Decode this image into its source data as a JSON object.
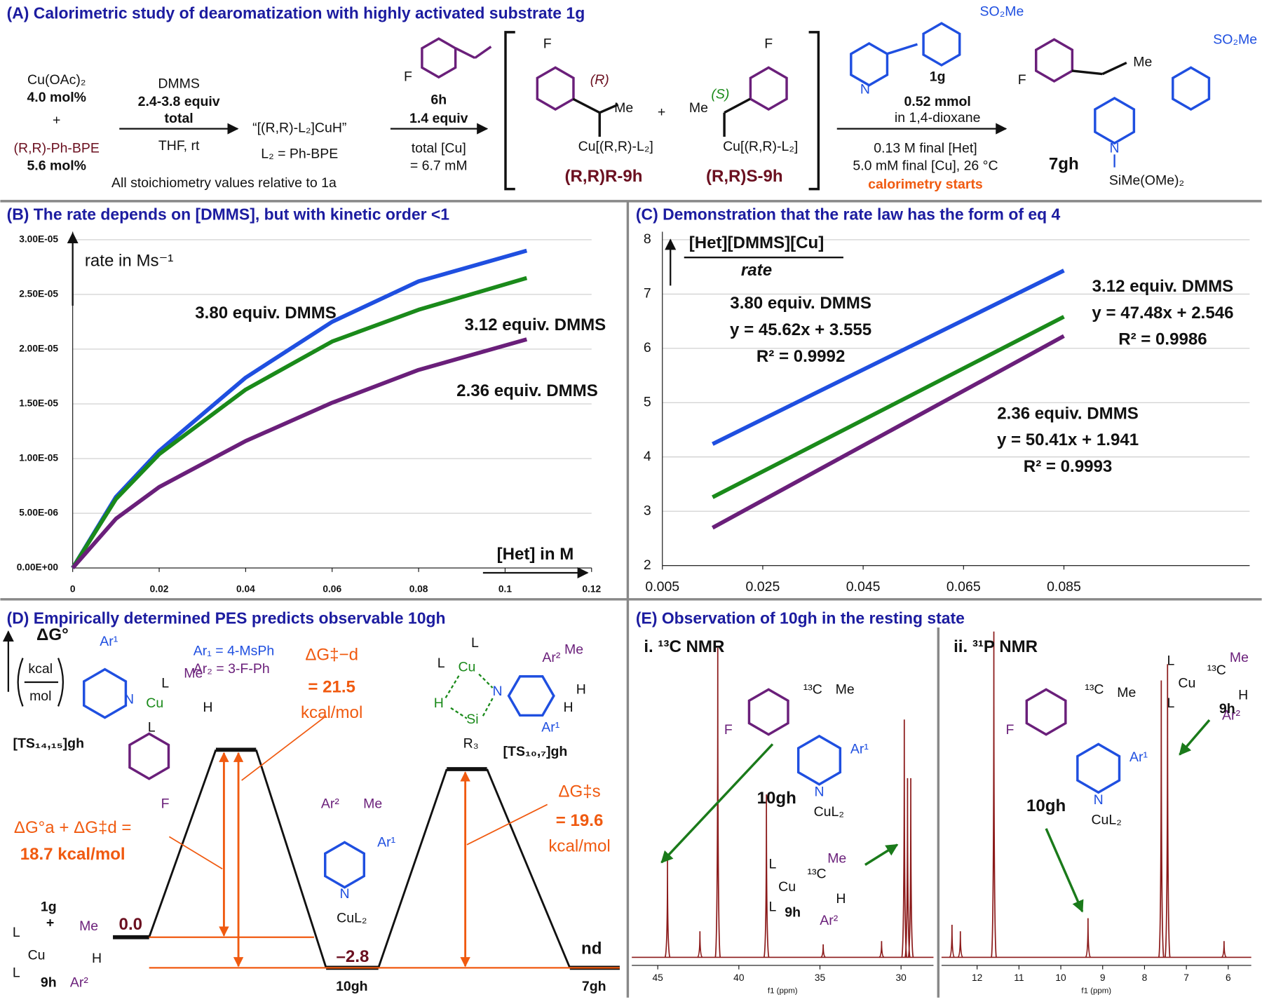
{
  "panel_a": {
    "title": "(A) Calorimetric study of dearomatization with highly activated substrate 1g",
    "reagent1": "Cu(OAc)₂",
    "reagent1_amount": "4.0 mol%",
    "plus": "+",
    "ligand": "(R,R)-Ph-BPE",
    "ligand_amount": "5.6 mol%",
    "dmms": "DMMS",
    "dmms_amount": "2.4-3.8 equiv",
    "dmms_total": "total",
    "conditions": "THF, rt",
    "cuh": "“[(R,R)-L₂]CuH”",
    "l2": "L₂ = Ph-BPE",
    "note": "All stoichiometry values relative to 1a",
    "styrene_f": "F",
    "styrene_label": "6h",
    "styrene_amount": "1.4 equiv",
    "cu_total": "total [Cu]",
    "cu_conc": "= 6.7 mM",
    "int_r_f": "F",
    "int_r_config": "(R)",
    "int_r_me": "Me",
    "int_r_cu": "Cu[(R,R)-L₂]",
    "plus2": "+",
    "int_s_me": "Me",
    "int_s_config": "(S)",
    "int_s_f": "F",
    "int_s_cu": "Cu[(R,R)-L₂]",
    "label_r": "(R,R)R-9h",
    "label_s": "(R,R)S-9h",
    "het_so2me": "SO₂Me",
    "het_n": "N",
    "het_label": "1g",
    "het_amount": "0.52 mmol",
    "het_solvent": "in 1,4-dioxane",
    "cond2": "0.13 M final [Het]",
    "cond3": "5.0 mM final [Cu], 26 °C",
    "cond4": "calorimetry starts",
    "prod_f": "F",
    "prod_me": "Me",
    "prod_so2me": "SO₂Me",
    "prod_n": "N",
    "prod_si": "SiMe(OMe)₂",
    "prod_label": "7gh"
  },
  "chart_data": [
    {
      "type": "line",
      "title": "(B) The rate depends on [DMMS], but with kinetic order <1",
      "ylabel": "rate in Ms⁻¹",
      "xlabel": "[Het] in M",
      "x": [
        0,
        0.01,
        0.02,
        0.04,
        0.06,
        0.08,
        0.105
      ],
      "series": [
        {
          "name": "3.80 equiv. DMMS",
          "color": "#1f4fe0",
          "values": [
            0,
            6.5e-06,
            1.07e-05,
            1.74e-05,
            2.25e-05,
            2.62e-05,
            2.9e-05
          ]
        },
        {
          "name": "3.12 equiv. DMMS",
          "color": "#1a8a1a",
          "values": [
            0,
            6.3e-06,
            1.04e-05,
            1.63e-05,
            2.07e-05,
            2.36e-05,
            2.65e-05
          ]
        },
        {
          "name": "2.36 equiv. DMMS",
          "color": "#6a1f7a",
          "values": [
            0,
            4.5e-06,
            7.4e-06,
            1.16e-05,
            1.51e-05,
            1.81e-05,
            2.09e-05
          ]
        }
      ],
      "xlim": [
        0,
        0.12
      ],
      "xticks": [
        0,
        0.02,
        0.04,
        0.06,
        0.08,
        0.1,
        0.12
      ],
      "ylim": [
        0,
        3e-05
      ],
      "yticks": [
        {
          "value": 0,
          "label": "0.00E+00"
        },
        {
          "value": 5e-06,
          "label": "5.00E-06"
        },
        {
          "value": 1e-05,
          "label": "1.00E-05"
        },
        {
          "value": 1.5e-05,
          "label": "1.50E-05"
        },
        {
          "value": 2e-05,
          "label": "2.00E-05"
        },
        {
          "value": 2.5e-05,
          "label": "2.50E-05"
        },
        {
          "value": 3e-05,
          "label": "3.00E-05"
        }
      ],
      "grid": true
    },
    {
      "type": "line",
      "title": "(C) Demonstration that the rate law has the form of eq 4",
      "ylabel_top": "[Het][DMMS][Cu]",
      "ylabel_bottom": "rate",
      "x": [
        0.015,
        0.035,
        0.055,
        0.075,
        0.085
      ],
      "series": [
        {
          "name": "3.80 equiv. DMMS",
          "color": "#1f4fe0",
          "values": [
            4.239,
            5.152,
            6.064,
            6.977,
            7.433
          ],
          "fit": "y = 45.62x + 3.555",
          "r2": "R² = 0.9992"
        },
        {
          "name": "3.12 equiv. DMMS",
          "color": "#1a8a1a",
          "values": [
            3.258,
            4.208,
            5.157,
            6.107,
            6.582
          ],
          "fit": "y = 47.48x + 2.546",
          "r2": "R² = 0.9986"
        },
        {
          "name": "2.36 equiv. DMMS",
          "color": "#6a1f7a",
          "values": [
            2.697,
            3.705,
            4.714,
            5.722,
            6.226
          ],
          "fit": "y = 50.41x + 1.941",
          "r2": "R² = 0.9993"
        }
      ],
      "xlim": [
        0.005,
        0.122
      ],
      "xticks": [
        0.005,
        0.025,
        0.045,
        0.065,
        0.085
      ],
      "ylim": [
        2,
        8
      ],
      "yticks": [
        2,
        3,
        4,
        5,
        6,
        7,
        8
      ],
      "grid": true
    },
    {
      "type": "spectrum",
      "title": "i. ¹³C NMR",
      "xlabel": "f1 (ppm)",
      "color": "#8b1a1a",
      "xlim": [
        46.6,
        28
      ],
      "xticks": [
        45,
        40,
        35,
        30
      ],
      "x": [
        44.4,
        42.4,
        41.3,
        38.3,
        34.8,
        31.2,
        29.8,
        29.6,
        29.4
      ],
      "values": [
        0.3,
        0.08,
        0.95,
        0.5,
        0.04,
        0.05,
        0.73,
        0.55,
        0.55
      ]
    },
    {
      "type": "spectrum",
      "title": "ii. ³¹P NMR",
      "xlabel": "f1 (ppm)",
      "color": "#8b1a1a",
      "xlim": [
        12.85,
        5.45
      ],
      "xticks": [
        12,
        11,
        10,
        9,
        8,
        7,
        6
      ],
      "x": [
        12.6,
        12.4,
        11.6,
        9.35,
        7.6,
        7.45,
        6.1
      ],
      "values": [
        0.1,
        0.08,
        1.0,
        0.12,
        0.85,
        0.9,
        0.05
      ]
    }
  ],
  "panel_d": {
    "title": "(D) Empirically determined PES predicts observable 10gh",
    "dg": "ΔG°",
    "kcal": "kcal",
    "mol": "mol",
    "ar1": "Ar₁ = 4-MsPh",
    "ar2": "Ar₂ = 3-F-Ph",
    "ts1": "[TS₁₄,₁₅]gh",
    "ts1_ar": "Ar¹",
    "ts1_n": "N",
    "ts1_cu": "Cu",
    "ts1_l1": "L",
    "ts1_l2": "L",
    "ts1_me": "Me",
    "ts1_h": "H",
    "ts1_f": "F",
    "dgd": "ΔG‡−d",
    "dgd_val": "= 21.5",
    "dgd_unit": "kcal/mol",
    "dga": "ΔG°a + ΔG‡d  =",
    "dga_val": "18.7 kcal/mol",
    "dgs": "ΔG‡s",
    "dgs_val": "= 19.6",
    "dgs_unit": "kcal/mol",
    "ts2": "[TS₁₀,₇]gh",
    "ts2_l1": "L",
    "ts2_l2": "L",
    "ts2_cu": "Cu",
    "ts2_h": "H",
    "ts2_si": "Si",
    "ts2_r3": "R₃",
    "ts2_n": "N",
    "ts2_ar2": "Ar²",
    "ts2_me": "Me",
    "ts2_h2": "H",
    "ts2_h3": "H",
    "ts2_ar1": "Ar¹",
    "g1": "1g",
    "plus": "+",
    "g9h": "9h",
    "l_a": "L",
    "l_b": "L",
    "cu": "Cu",
    "me": "Me",
    "h": "H",
    "ar2b": "Ar²",
    "e0": "0.0",
    "e1": "–2.8",
    "e2": "nd",
    "s10": "10gh",
    "s7": "7gh",
    "m_ar2": "Ar²",
    "m_me": "Me",
    "m_ar1": "Ar¹",
    "m_n": "N",
    "m_cul2": "CuL₂"
  },
  "panel_e": {
    "title": "(E) Observation of 10gh in the resting state",
    "c_f": "F",
    "c_13c": "¹³C",
    "c_me": "Me",
    "c_ar1": "Ar¹",
    "c_n": "N",
    "c_cul2": "CuL₂",
    "c_10gh": "10gh",
    "c9_l1": "L",
    "c9_cu": "Cu",
    "c9_13c": "¹³C",
    "c9_me": "Me",
    "c9_h": "H",
    "c9_l2": "L",
    "c9_ar2": "Ar²",
    "c9_label": "9h",
    "p_f": "F",
    "p_13c": "¹³C",
    "p_me": "Me",
    "p_ar1": "Ar¹",
    "p_n": "N",
    "p_cul2": "CuL₂",
    "p_10gh": "10gh",
    "p9_l1": "L",
    "p9_cu": "Cu",
    "p9_13c": "¹³C",
    "p9_me": "Me",
    "p9_h": "H",
    "p9_l2": "L",
    "p9_ar2": "Ar²",
    "p9_label": "9h"
  }
}
